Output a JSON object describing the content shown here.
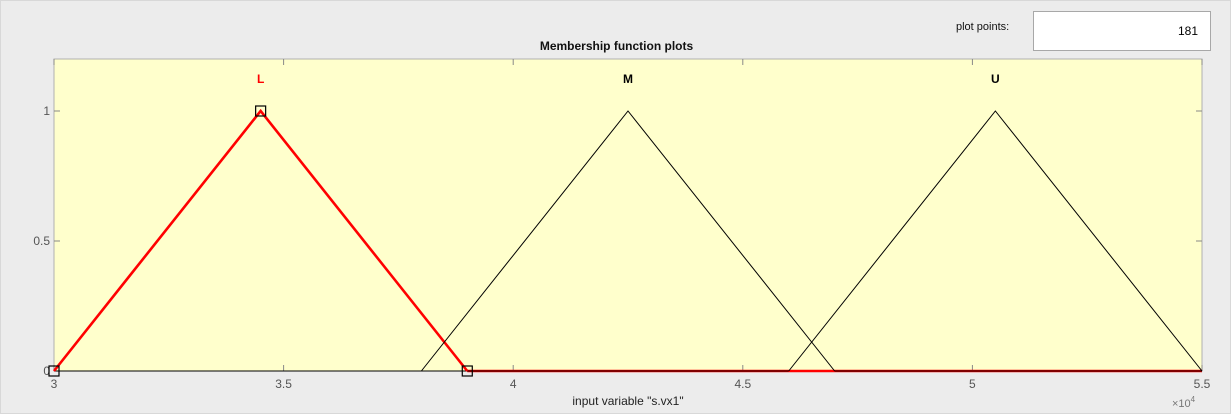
{
  "controls": {
    "plot_points_label": "plot points:",
    "plot_points_value": "181"
  },
  "chart_data": {
    "type": "line",
    "title": "Membership function plots",
    "xlabel": "input variable \"s.vx1\"",
    "xlim": [
      30000,
      55000
    ],
    "ylim": [
      0,
      1.2
    ],
    "x_exponent_label": "×10",
    "x_exponent_power": "4",
    "x_ticks": [
      {
        "value": 30000,
        "label": "3"
      },
      {
        "value": 35000,
        "label": "3.5"
      },
      {
        "value": 40000,
        "label": "4"
      },
      {
        "value": 45000,
        "label": "4.5"
      },
      {
        "value": 50000,
        "label": "5"
      },
      {
        "value": 55000,
        "label": "5.5"
      }
    ],
    "y_ticks": [
      {
        "value": 0,
        "label": "0"
      },
      {
        "value": 0.5,
        "label": "0.5"
      },
      {
        "value": 1,
        "label": "1"
      }
    ],
    "background_color": "#ffffcc",
    "series": [
      {
        "name": "L",
        "shape": "triangle",
        "params": [
          30000,
          34500,
          39000
        ],
        "color": "#ff0000",
        "selected": true
      },
      {
        "name": "M",
        "shape": "triangle",
        "params": [
          38000,
          42500,
          47000
        ],
        "color": "#000000",
        "selected": false
      },
      {
        "name": "U",
        "shape": "triangle",
        "params": [
          46000,
          50500,
          55000
        ],
        "color": "#000000",
        "selected": false
      }
    ]
  }
}
